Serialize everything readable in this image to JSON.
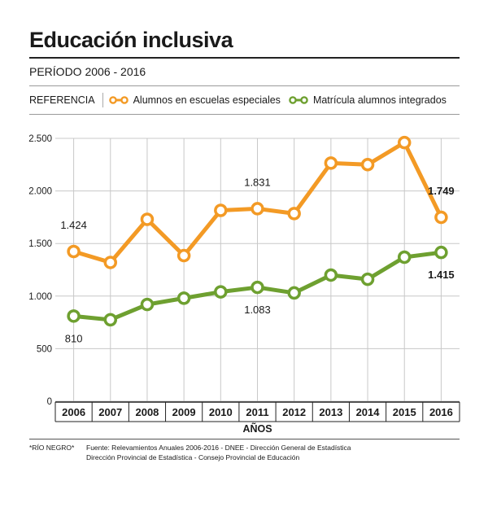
{
  "title": "Educación inclusiva",
  "subtitle": "PERÍODO 2006 - 2016",
  "legend": {
    "label": "REFERENCIA",
    "items": [
      {
        "label": "Alumnos en escuelas especiales",
        "color": "#f39a25"
      },
      {
        "label": "Matrícula alumnos integrados",
        "color": "#6ea030"
      }
    ]
  },
  "footnote": {
    "region": "*RÍO NEGRO*",
    "source_line1": "Fuente: Relevamientos Anuales 2006-2016 - DNEE - Dirección General de Estadística",
    "source_line2": "Dirección Provincial de Estadística - Consejo Provincial de Educación"
  },
  "chart_data": {
    "type": "line",
    "categories": [
      "2006",
      "2007",
      "2008",
      "2009",
      "2010",
      "2011",
      "2012",
      "2013",
      "2014",
      "2015",
      "2016"
    ],
    "xlabel": "AÑOS",
    "ylabel": "",
    "ylim": [
      0,
      2500
    ],
    "yticks": [
      0,
      500,
      1000,
      1500,
      2000,
      2500
    ],
    "ytick_labels": [
      "0",
      "500",
      "1.000",
      "1.500",
      "2.000",
      "2.500"
    ],
    "grid": "vertical",
    "series": [
      {
        "name": "Alumnos en escuelas especiales",
        "color": "#f39a25",
        "values": [
          1424,
          1320,
          1730,
          1385,
          1815,
          1831,
          1785,
          2265,
          2250,
          2460,
          1749
        ],
        "data_labels": [
          {
            "index": 0,
            "text": "1.424",
            "position": "above"
          },
          {
            "index": 5,
            "text": "1.831",
            "position": "above"
          },
          {
            "index": 10,
            "text": "1.749",
            "position": "above"
          }
        ]
      },
      {
        "name": "Matrícula alumnos integrados",
        "color": "#6ea030",
        "values": [
          810,
          775,
          920,
          980,
          1040,
          1083,
          1030,
          1200,
          1160,
          1370,
          1415
        ],
        "data_labels": [
          {
            "index": 0,
            "text": "810",
            "position": "below"
          },
          {
            "index": 5,
            "text": "1.083",
            "position": "below"
          },
          {
            "index": 10,
            "text": "1.415",
            "position": "below"
          }
        ]
      }
    ]
  }
}
